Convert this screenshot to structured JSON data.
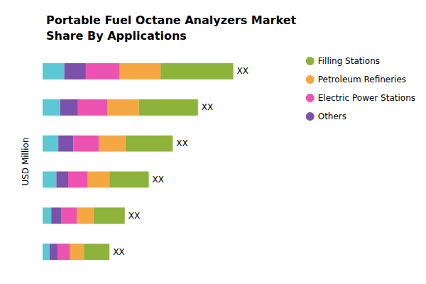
{
  "chart_data": {
    "type": "bar",
    "orientation": "horizontal",
    "stacked": true,
    "title": "Portable Fuel Octane Analyzers Market\nShare By Applications",
    "ylabel": "USD Million",
    "categories": [
      null,
      null,
      null,
      null,
      null,
      null
    ],
    "series": [
      {
        "color": "#5BC8D4",
        "values": [
          0.55,
          0.45,
          0.4,
          0.35,
          0.22,
          0.18
        ]
      },
      {
        "name": "Others",
        "color": "#7B52AB",
        "values": [
          0.55,
          0.45,
          0.38,
          0.3,
          0.25,
          0.2
        ]
      },
      {
        "name": "Electric Power Stations",
        "color": "#EE52B0",
        "values": [
          0.85,
          0.75,
          0.65,
          0.5,
          0.4,
          0.32
        ]
      },
      {
        "name": "Petroleum Refineries",
        "color": "#F5A842",
        "values": [
          1.05,
          0.8,
          0.68,
          0.55,
          0.42,
          0.35
        ]
      },
      {
        "name": "Filling Stations",
        "color": "#8DB33A",
        "values": [
          1.85,
          1.5,
          1.2,
          1.0,
          0.8,
          0.65
        ]
      }
    ],
    "annotations": [
      "XX",
      "XX",
      "XX",
      "XX",
      "XX",
      "XX"
    ],
    "xlim": [
      0,
      6.5
    ],
    "tick_labels": false,
    "grid": false,
    "legend": "upper right",
    "marker": "circle"
  }
}
